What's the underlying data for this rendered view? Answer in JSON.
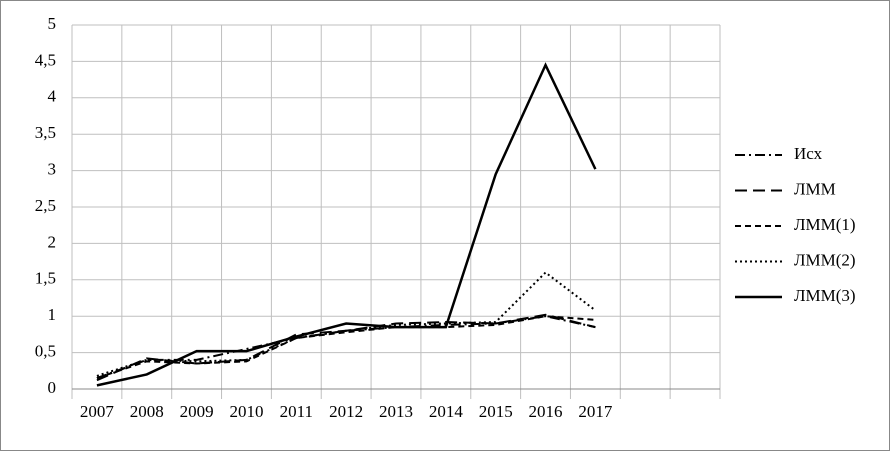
{
  "chart_data": {
    "type": "line",
    "categories": [
      "2007",
      "2008",
      "2009",
      "2010",
      "2011",
      "2012",
      "2013",
      "2014",
      "2015",
      "2016",
      "2017",
      null,
      null
    ],
    "series": [
      {
        "name": "Исх",
        "color": "#000000",
        "line_style": "dashdot",
        "values": [
          0.15,
          0.4,
          0.4,
          0.55,
          0.7,
          0.8,
          0.85,
          0.88,
          0.9,
          1.0,
          0.85,
          null,
          null
        ]
      },
      {
        "name": "ЛММ",
        "color": "#000000",
        "line_style": "longdash",
        "values": [
          0.12,
          0.42,
          0.35,
          0.4,
          0.75,
          0.8,
          0.9,
          0.92,
          0.9,
          1.02,
          0.85,
          null,
          null
        ]
      },
      {
        "name": "ЛММ(1)",
        "color": "#000000",
        "line_style": "dash",
        "values": [
          0.15,
          0.38,
          0.35,
          0.38,
          0.7,
          0.78,
          0.85,
          0.85,
          0.88,
          1.0,
          0.95,
          null,
          null
        ]
      },
      {
        "name": "ЛММ(2)",
        "color": "#000000",
        "line_style": "dot",
        "values": [
          0.18,
          0.4,
          0.38,
          0.4,
          0.7,
          0.8,
          0.88,
          0.9,
          0.92,
          1.6,
          1.08,
          null,
          null
        ]
      },
      {
        "name": "ЛММ(3)",
        "color": "#000000",
        "line_style": "solid",
        "values": [
          0.05,
          0.2,
          0.52,
          0.52,
          0.72,
          0.9,
          0.85,
          0.85,
          2.95,
          4.45,
          3.02,
          null,
          null
        ]
      }
    ],
    "ylim": [
      0,
      5
    ],
    "yticks": [
      0,
      {
        "value": 0.5,
        "label": "0,5"
      },
      1,
      {
        "value": 1.5,
        "label": "1,5"
      },
      2,
      {
        "value": 2.5,
        "label": "2,5"
      },
      3,
      {
        "value": 3.5,
        "label": "3,5"
      },
      4,
      {
        "value": 4.5,
        "label": "4,5"
      },
      5
    ],
    "grid": true,
    "legend": "right"
  }
}
